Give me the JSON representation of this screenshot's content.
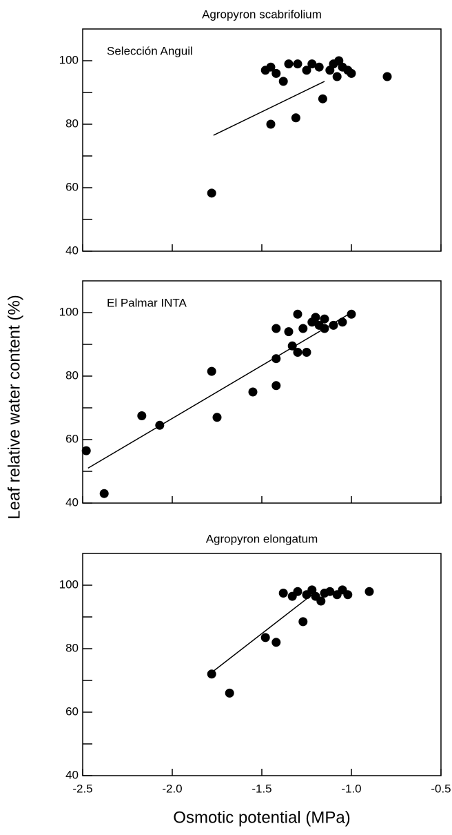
{
  "figure": {
    "y_label": "Leaf relative water content (%)",
    "x_label": "Osmotic potential (MPa)"
  },
  "chart_data": [
    {
      "type": "scatter",
      "title": "Agropyron scabrifolium",
      "annotation": "Selección Anguil",
      "color": "#000000",
      "x": [
        -1.78,
        -1.45,
        -1.31,
        -1.16,
        -1.48,
        -1.45,
        -1.42,
        -1.38,
        -1.35,
        -1.3,
        -1.25,
        -1.22,
        -1.18,
        -1.12,
        -1.1,
        -1.07,
        -1.05,
        -1.02,
        -1.0,
        -1.08,
        -0.8
      ],
      "y": [
        58.3,
        80,
        82,
        88,
        97,
        98,
        96,
        93.5,
        99,
        99,
        97,
        99,
        98,
        97,
        99,
        100,
        98,
        97,
        96,
        95,
        95
      ],
      "fit": {
        "x": [
          -1.77,
          -1.15
        ],
        "y": [
          76.5,
          93.5
        ]
      },
      "xlim": [
        -2.5,
        -0.5
      ],
      "xticks": [
        -2.5,
        -2,
        -1.5,
        -1,
        -0.5
      ],
      "xtick_labels": false,
      "ylim": [
        40,
        110
      ],
      "yticks": [
        40,
        60,
        80,
        100
      ],
      "y_minor_ticks": [
        50,
        70,
        90
      ]
    },
    {
      "type": "scatter",
      "annotation": "El Palmar INTA",
      "color": "#000000",
      "x": [
        -2.48,
        -2.38,
        -2.17,
        -2.07,
        -1.78,
        -1.75,
        -1.55,
        -1.42,
        -1.42,
        -1.42,
        -1.35,
        -1.33,
        -1.3,
        -1.25,
        -1.3,
        -1.27,
        -1.22,
        -1.2,
        -1.18,
        -1.15,
        -1.15,
        -1.1,
        -1.05,
        -1.0
      ],
      "y": [
        56.5,
        43,
        67.5,
        64.5,
        81.5,
        67,
        75,
        77,
        85.5,
        95,
        94,
        89.5,
        87.5,
        87.5,
        99.5,
        95,
        97,
        98.5,
        96,
        95,
        98,
        96,
        97,
        99.5
      ],
      "fit": {
        "x": [
          -2.47,
          -1.0
        ],
        "y": [
          51,
          100
        ]
      },
      "xlim": [
        -2.5,
        -0.5
      ],
      "xticks": [
        -2.5,
        -2,
        -1.5,
        -1,
        -0.5
      ],
      "xtick_labels": false,
      "ylim": [
        40,
        110
      ],
      "yticks": [
        40,
        60,
        80,
        100
      ],
      "y_minor_ticks": [
        50,
        70,
        90
      ]
    },
    {
      "type": "scatter",
      "title": "Agropyron elongatum",
      "color": "#000000",
      "x": [
        -1.78,
        -1.68,
        -1.48,
        -1.42,
        -1.27,
        -1.38,
        -1.33,
        -1.3,
        -1.25,
        -1.22,
        -1.2,
        -1.17,
        -1.15,
        -1.12,
        -1.08,
        -1.05,
        -1.02,
        -0.9
      ],
      "y": [
        72,
        66,
        83.5,
        82,
        88.5,
        97.5,
        96.5,
        98,
        97,
        98.5,
        96.5,
        95,
        97.5,
        98,
        97,
        98.5,
        97,
        98
      ],
      "fit": {
        "x": [
          -1.78,
          -1.22
        ],
        "y": [
          72.5,
          97
        ]
      },
      "xlim": [
        -2.5,
        -0.5
      ],
      "xticks": [
        -2.5,
        {
          "value": -2,
          "label": "-2.0"
        },
        -1.5,
        {
          "value": -1,
          "label": "-1.0"
        },
        -0.5
      ],
      "xtick_labels": true,
      "ylim": [
        40,
        110
      ],
      "yticks": [
        40,
        60,
        80,
        100
      ],
      "y_minor_ticks": [
        50,
        70,
        90
      ]
    }
  ]
}
